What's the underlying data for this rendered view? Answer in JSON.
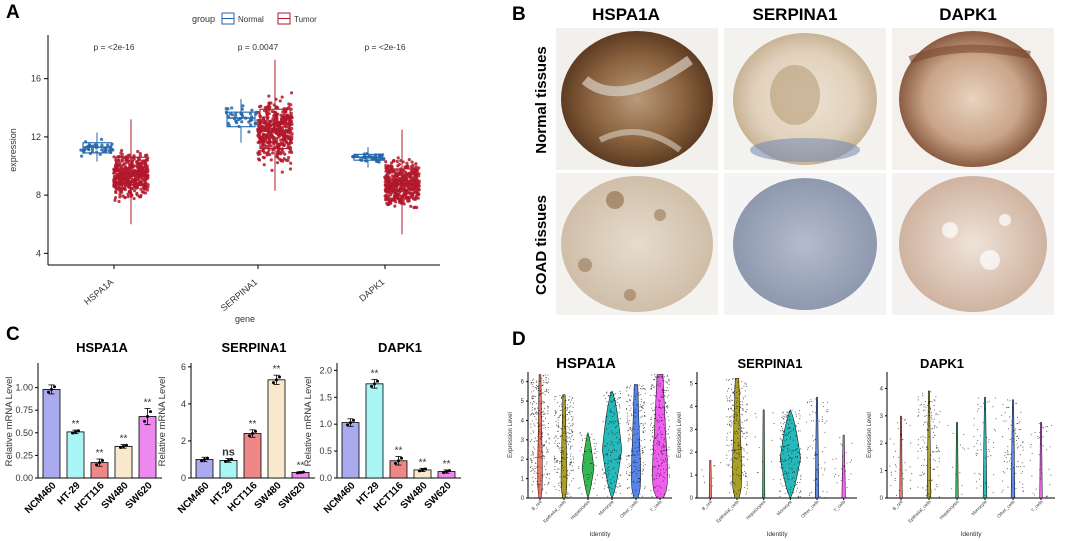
{
  "panel_labels": [
    "A",
    "B",
    "C",
    "D"
  ],
  "colors": {
    "normal": "#2166ac",
    "tumor": "#b2182b",
    "c_ncm460": "#aaaaee",
    "c_ht29": "#aaf5f5",
    "c_hct116": "#ee8888",
    "c_sw480": "#f8e8cc",
    "c_sw620": "#ee88ee",
    "v_bcell": "#f26b5b",
    "v_epi": "#a89a1c",
    "v_hep": "#2bb34a",
    "v_mono": "#1bb5b5",
    "v_other": "#4d7ee8",
    "v_tcell": "#ee55ee"
  },
  "chart_data": [
    {
      "panel": "A",
      "type": "boxplot",
      "legend_title": "group",
      "legend": [
        "Normal",
        "Tumor"
      ],
      "xlabel": "gene",
      "ylabel": "expression",
      "yticks": [
        4,
        8,
        12,
        16
      ],
      "ylim": [
        3.2,
        19
      ],
      "categories": [
        "HSPA1A",
        "SERPINA1",
        "DAPK1"
      ],
      "pvalues": [
        "p = <2e-16",
        "p = 0.0047",
        "p = <2e-16"
      ],
      "series": [
        {
          "name": "Normal",
          "boxes": [
            {
              "min": 10.3,
              "q1": 10.9,
              "median": 11.3,
              "q3": 11.6,
              "max": 12.3
            },
            {
              "min": 11.6,
              "q1": 12.7,
              "median": 13.3,
              "q3": 13.7,
              "max": 14.6
            },
            {
              "min": 9.9,
              "q1": 10.4,
              "median": 10.6,
              "q3": 10.8,
              "max": 11.3
            }
          ]
        },
        {
          "name": "Tumor",
          "boxes": [
            {
              "min": 6.0,
              "q1": 8.7,
              "median": 9.4,
              "q3": 10.6,
              "max": 13.2
            },
            {
              "min": 8.3,
              "q1": 11.2,
              "median": 12.4,
              "q3": 13.9,
              "max": 17.3
            },
            {
              "min": 5.3,
              "q1": 7.8,
              "median": 8.8,
              "q3": 9.8,
              "max": 12.5
            }
          ]
        }
      ]
    },
    {
      "panel": "B",
      "type": "image_grid",
      "columns": [
        "HSPA1A",
        "SERPINA1",
        "DAPK1"
      ],
      "rows": [
        "Normal tissues",
        "COAD tissues"
      ]
    },
    {
      "panel": "C",
      "type": "bar",
      "ylabel": "Relative mRNA Level",
      "categories": [
        "NCM460",
        "HT-29",
        "HCT116",
        "SW480",
        "SW620"
      ],
      "charts": [
        {
          "title": "HSPA1A",
          "ylim": [
            0,
            1.25
          ],
          "yticks": [
            0,
            0.25,
            0.5,
            0.75,
            1.0
          ],
          "ytick_labels": [
            "0.00",
            "0.25",
            "0.50",
            "0.75",
            "1.00"
          ],
          "values": [
            0.98,
            0.51,
            0.17,
            0.35,
            0.68
          ],
          "errors": [
            0.05,
            0.02,
            0.04,
            0.02,
            0.09
          ],
          "labels": [
            "",
            "**",
            "**",
            "**",
            "**"
          ]
        },
        {
          "title": "SERPINA1",
          "ylim": [
            0,
            6.1
          ],
          "yticks": [
            0,
            2,
            4,
            6
          ],
          "ytick_labels": [
            "0",
            "2",
            "4",
            "6"
          ],
          "values": [
            1.0,
            0.95,
            2.4,
            5.3,
            0.3
          ],
          "errors": [
            0.12,
            0.1,
            0.2,
            0.25,
            0.04
          ],
          "labels": [
            "",
            "ns",
            "**",
            "**",
            "**"
          ]
        },
        {
          "title": "DAPK1",
          "ylim": [
            0,
            2.1
          ],
          "yticks": [
            0,
            0.5,
            1.0,
            1.5,
            2.0
          ],
          "ytick_labels": [
            "0.0",
            "0.5",
            "1.0",
            "1.5",
            "2.0"
          ],
          "values": [
            1.03,
            1.75,
            0.32,
            0.15,
            0.12
          ],
          "errors": [
            0.07,
            0.08,
            0.08,
            0.03,
            0.03
          ],
          "labels": [
            "",
            "**",
            "**",
            "**",
            "**"
          ]
        }
      ]
    },
    {
      "panel": "D",
      "type": "violin",
      "ylabel": "Expression Level",
      "xlabel": "Identity",
      "categories": [
        "B_cell",
        "Epithelial_cells",
        "Hepatocytes",
        "Monocyte",
        "Other_cells",
        "T_cells"
      ],
      "charts": [
        {
          "title": "HSPA1A",
          "ymax": 6.5,
          "yticks": [
            0,
            1,
            2,
            3,
            4,
            5,
            6
          ],
          "ytick_labels": [
            "0",
            "1",
            "2",
            "3",
            "4",
            "5",
            "6"
          ]
        },
        {
          "title": "SERPINA1",
          "ymax": 5.5,
          "yticks": [
            0,
            1,
            2,
            3,
            4,
            5
          ],
          "ytick_labels": [
            "0",
            "1",
            "2",
            "3",
            "4",
            "5"
          ]
        },
        {
          "title": "DAPK1",
          "ymax": 4.6,
          "yticks": [
            0,
            1,
            2,
            3,
            4
          ],
          "ytick_labels": [
            "0",
            "1",
            "2",
            "3",
            "4"
          ]
        }
      ]
    }
  ]
}
